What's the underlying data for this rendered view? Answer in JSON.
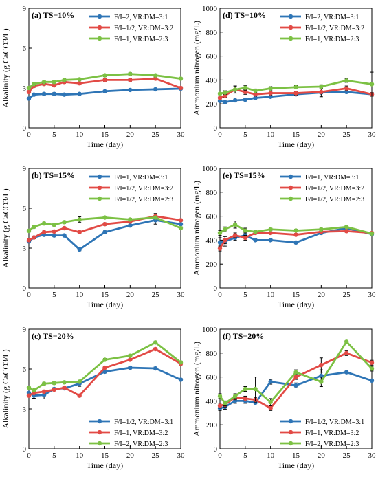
{
  "series_colors": [
    "#2E75B6",
    "#E24A45",
    "#7CC144"
  ],
  "chart_data": [
    {
      "id": "a",
      "type": "line",
      "title": "(a) TS=10%",
      "xlabel": "Time (day)",
      "ylabel": "Alkalinity (g CaCO3/L)",
      "xlim": [
        0,
        30
      ],
      "ylim": [
        0,
        9
      ],
      "xticks": [
        0,
        5,
        10,
        15,
        20,
        25,
        30
      ],
      "yticks": [
        0,
        3,
        6,
        9
      ],
      "legend_position": "top-right",
      "x": [
        0,
        1,
        3,
        5,
        7,
        10,
        15,
        20,
        25,
        30
      ],
      "series": [
        {
          "name": "F/I=2, VR:DM=3:1",
          "values": [
            2.2,
            2.5,
            2.55,
            2.55,
            2.5,
            2.55,
            2.75,
            2.85,
            2.9,
            2.95
          ],
          "err": [
            0.05,
            0.1,
            0.1,
            0.1,
            0.05,
            0.05,
            0.05,
            0.05,
            0.05,
            0.05
          ]
        },
        {
          "name": "F/I=1/2, VR:DM=3:2",
          "values": [
            2.7,
            3.15,
            3.3,
            3.2,
            3.45,
            3.35,
            3.6,
            3.6,
            3.7,
            3.0
          ],
          "err": [
            0.05,
            0.1,
            0.1,
            0.1,
            0.1,
            0.1,
            0.1,
            0.1,
            0.1,
            0.1
          ]
        },
        {
          "name": "F/I=1, VR:DM=2:3",
          "values": [
            3.0,
            3.3,
            3.45,
            3.45,
            3.6,
            3.65,
            3.95,
            4.05,
            3.95,
            3.7
          ],
          "err": [
            0.05,
            0.1,
            0.1,
            0.1,
            0.1,
            0.1,
            0.1,
            0.1,
            0.1,
            0.1
          ]
        }
      ]
    },
    {
      "id": "d",
      "type": "line",
      "title": "(d) TS=10%",
      "xlabel": "Time (day)",
      "ylabel": "Ammonium nitrogen (mg/L)",
      "xlim": [
        0,
        30
      ],
      "ylim": [
        0,
        1000
      ],
      "xticks": [
        0,
        5,
        10,
        15,
        20,
        25,
        30
      ],
      "yticks": [
        0,
        200,
        400,
        600,
        800,
        1000
      ],
      "legend_position": "top-right",
      "x": [
        0,
        1,
        3,
        5,
        7,
        10,
        15,
        20,
        25,
        30
      ],
      "series": [
        {
          "name": "F/I=2, VR:DM=3:1",
          "values": [
            225,
            215,
            230,
            235,
            250,
            260,
            280,
            295,
            300,
            280
          ],
          "err": [
            10,
            10,
            10,
            10,
            10,
            10,
            10,
            10,
            10,
            10
          ]
        },
        {
          "name": "F/I=1/2, VR:DM=3:2",
          "values": [
            250,
            270,
            320,
            300,
            280,
            290,
            290,
            300,
            330,
            280
          ],
          "err": [
            10,
            15,
            30,
            20,
            15,
            15,
            15,
            40,
            20,
            15
          ]
        },
        {
          "name": "F/I=1, VR:DM=2:3",
          "values": [
            285,
            295,
            320,
            335,
            310,
            330,
            340,
            345,
            395,
            365
          ],
          "err": [
            10,
            15,
            30,
            20,
            15,
            15,
            15,
            15,
            15,
            100
          ]
        }
      ]
    },
    {
      "id": "b",
      "type": "line",
      "title": "(b) TS=15%",
      "xlabel": "Time (day)",
      "ylabel": "Alkalinity (g CaCO3/L)",
      "xlim": [
        0,
        30
      ],
      "ylim": [
        0,
        9
      ],
      "xticks": [
        0,
        5,
        10,
        15,
        20,
        25,
        30
      ],
      "yticks": [
        0,
        3,
        6,
        9
      ],
      "legend_position": "top-right",
      "x": [
        0,
        1,
        3,
        5,
        7,
        10,
        15,
        20,
        25,
        30
      ],
      "series": [
        {
          "name": "F/I=1, VR:DM=3:1",
          "values": [
            3.5,
            3.8,
            4.0,
            3.95,
            3.95,
            2.9,
            4.2,
            4.7,
            5.1,
            4.8
          ],
          "err": [
            0.1,
            0.1,
            0.1,
            0.1,
            0.1,
            0.1,
            0.1,
            0.1,
            0.3,
            0.2
          ]
        },
        {
          "name": "F/I=1/2, VR:DM=3:2",
          "values": [
            3.6,
            3.8,
            4.2,
            4.25,
            4.5,
            4.2,
            4.8,
            5.0,
            5.4,
            5.1
          ],
          "err": [
            0.1,
            0.1,
            0.1,
            0.1,
            0.1,
            0.1,
            0.1,
            0.1,
            0.2,
            0.1
          ]
        },
        {
          "name": "F/I=1/2, VR:DM=2:3",
          "values": [
            4.3,
            4.6,
            4.85,
            4.75,
            4.95,
            5.15,
            5.3,
            5.15,
            5.3,
            4.5
          ],
          "err": [
            0.1,
            0.1,
            0.1,
            0.1,
            0.1,
            0.2,
            0.1,
            0.1,
            0.1,
            0.1
          ]
        }
      ]
    },
    {
      "id": "e",
      "type": "line",
      "title": "(e) TS=15%",
      "xlabel": "Time (day)",
      "ylabel": "Ammonium nitrogen (mg/L)",
      "xlim": [
        0,
        30
      ],
      "ylim": [
        0,
        1000
      ],
      "xticks": [
        0,
        5,
        10,
        15,
        20,
        25,
        30
      ],
      "yticks": [
        0,
        200,
        400,
        600,
        800,
        1000
      ],
      "legend_position": "top-right",
      "x": [
        0,
        1,
        3,
        5,
        7,
        10,
        15,
        20,
        25,
        30
      ],
      "series": [
        {
          "name": "F/I=1, VR:DM=3:1",
          "values": [
            380,
            390,
            420,
            440,
            400,
            400,
            380,
            460,
            500,
            450
          ],
          "err": [
            40,
            40,
            20,
            20,
            10,
            10,
            10,
            10,
            10,
            10
          ]
        },
        {
          "name": "F/I=1/2, VR:DM=3:2",
          "values": [
            330,
            400,
            440,
            420,
            460,
            460,
            445,
            470,
            475,
            460
          ],
          "err": [
            20,
            30,
            20,
            20,
            10,
            10,
            10,
            10,
            10,
            10
          ]
        },
        {
          "name": "F/I=1/2, VR:DM=2:3",
          "values": [
            460,
            490,
            530,
            480,
            470,
            490,
            480,
            490,
            510,
            455
          ],
          "err": [
            20,
            20,
            30,
            20,
            10,
            10,
            10,
            10,
            10,
            10
          ]
        }
      ]
    },
    {
      "id": "c",
      "type": "line",
      "title": "(c) TS=20%",
      "xlabel": "Time (day)",
      "ylabel": "Alkalinity (g CaCO3/L)",
      "xlim": [
        0,
        30
      ],
      "ylim": [
        0,
        9
      ],
      "xticks": [
        0,
        5,
        10,
        15,
        20,
        25,
        30
      ],
      "yticks": [
        0,
        3,
        6,
        9
      ],
      "legend_position": "bottom-right",
      "x": [
        0,
        1,
        3,
        5,
        7,
        10,
        15,
        20,
        25,
        30
      ],
      "series": [
        {
          "name": "F/I=1/2, VR:DM=3:1",
          "values": [
            4.2,
            4.0,
            4.05,
            4.5,
            4.55,
            4.9,
            5.8,
            6.1,
            6.05,
            5.2
          ],
          "err": [
            0.3,
            0.2,
            0.3,
            0.1,
            0.1,
            0.2,
            0.1,
            0.1,
            0.1,
            0.1
          ]
        },
        {
          "name": "F/I=1, VR:DM=3:2",
          "values": [
            4.0,
            4.2,
            4.3,
            4.45,
            4.6,
            4.0,
            6.1,
            6.7,
            7.5,
            6.4
          ],
          "err": [
            0.1,
            0.1,
            0.1,
            0.1,
            0.1,
            0.1,
            0.1,
            0.1,
            0.1,
            0.1
          ]
        },
        {
          "name": "F/I=2, VR:DM=2:3",
          "values": [
            4.6,
            4.4,
            4.9,
            4.95,
            5.0,
            5.05,
            6.7,
            7.0,
            8.0,
            6.5
          ],
          "err": [
            0.1,
            0.1,
            0.1,
            0.1,
            0.1,
            0.1,
            0.1,
            0.1,
            0.1,
            0.1
          ]
        }
      ]
    },
    {
      "id": "f",
      "type": "line",
      "title": "(f) TS=20%",
      "xlabel": "Time (day)",
      "ylabel": "Ammonium nitrogen (mg/L)",
      "xlim": [
        0,
        30
      ],
      "ylim": [
        0,
        1000
      ],
      "xticks": [
        0,
        5,
        10,
        15,
        20,
        25,
        30
      ],
      "yticks": [
        0,
        200,
        400,
        600,
        800,
        1000
      ],
      "legend_position": "bottom-right",
      "x": [
        0,
        1,
        3,
        5,
        7,
        10,
        15,
        20,
        25,
        30
      ],
      "series": [
        {
          "name": "F/I=1/2, VR:DM=3:1",
          "values": [
            340,
            350,
            400,
            400,
            385,
            560,
            530,
            610,
            640,
            570
          ],
          "err": [
            20,
            20,
            20,
            20,
            20,
            20,
            20,
            50,
            10,
            10
          ]
        },
        {
          "name": "F/I=1, VR:DM=3:2",
          "values": [
            360,
            370,
            430,
            420,
            410,
            340,
            600,
            700,
            800,
            720
          ],
          "err": [
            20,
            20,
            20,
            20,
            20,
            20,
            20,
            60,
            20,
            20
          ]
        },
        {
          "name": "F/I=2, VR:DM=2:3",
          "values": [
            440,
            380,
            440,
            500,
            500,
            390,
            640,
            560,
            895,
            670
          ],
          "err": [
            20,
            20,
            20,
            20,
            100,
            30,
            20,
            40,
            10,
            20
          ]
        }
      ]
    }
  ]
}
